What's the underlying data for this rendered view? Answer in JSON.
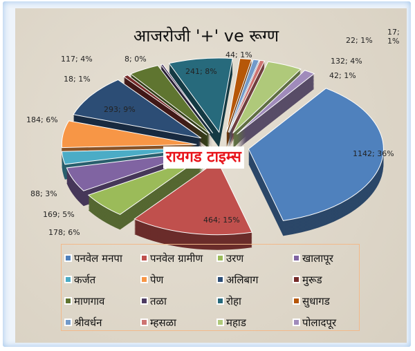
{
  "chart_data": {
    "type": "pie",
    "title": "आजरोजी  '+' ve रूग्ण",
    "watermark": "रायगड टाइम्स",
    "categories": [
      "पनवेल मनपा",
      "पनवेल ग्रामीण",
      "उरण",
      "खालापूर",
      "कर्जत",
      "पेण",
      "अलिबाग",
      "मुरूड",
      "माणगाव",
      "तळा",
      "रोहा",
      "सुधागड",
      "श्रीवर्धन",
      "म्हसळा",
      "महाड",
      "पोलादपूर"
    ],
    "values": [
      1142,
      464,
      178,
      169,
      88,
      184,
      293,
      18,
      117,
      8,
      241,
      44,
      22,
      17,
      132,
      42
    ],
    "data_labels": [
      "1142; 36%",
      "464; 15%",
      "178; 6%",
      "169; 5%",
      "88; 3%",
      "184; 6%",
      "293; 9%",
      "18; 1%",
      "117; 4%",
      "8; 0%",
      "241; 8%",
      "44; 1%",
      "22; 1%",
      "17; 1%",
      "132; 4%",
      "42; 1%"
    ],
    "colors": [
      "#4F81BD",
      "#C0504D",
      "#9BBB59",
      "#8064A2",
      "#4BACC6",
      "#F79646",
      "#2C4D75",
      "#772C2A",
      "#5F7530",
      "#4D3B62",
      "#276A7C",
      "#B65708",
      "#729ACA",
      "#CD7371",
      "#AFC97A",
      "#A08BBB"
    ],
    "legend_position": "bottom",
    "style": "exploded-3d"
  }
}
